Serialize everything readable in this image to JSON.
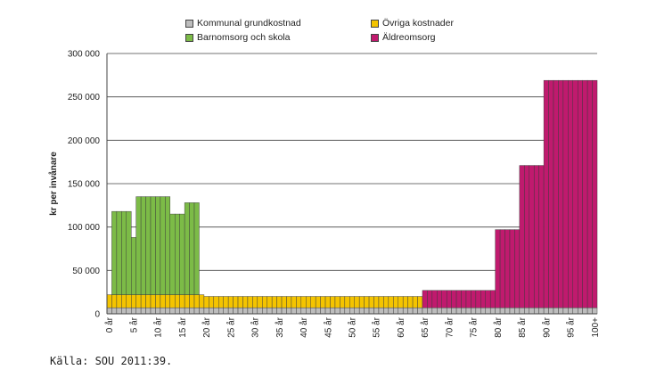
{
  "chart_data": {
    "type": "bar",
    "stacked": true,
    "ylabel": "kr per invånare",
    "ylim": [
      0,
      300000
    ],
    "yticks": [
      "0",
      "50 000",
      "100 000",
      "150 000",
      "200 000",
      "250 000",
      "300 000"
    ],
    "ytick_values": [
      0,
      50000,
      100000,
      150000,
      200000,
      250000,
      300000
    ],
    "grid": "horizontal",
    "legend_position": "top",
    "x_tick_labels": [
      {
        "age": 0,
        "label": "0 år"
      },
      {
        "age": 5,
        "label": "5 år"
      },
      {
        "age": 10,
        "label": "10 år"
      },
      {
        "age": 15,
        "label": "15 år"
      },
      {
        "age": 20,
        "label": "20 år"
      },
      {
        "age": 25,
        "label": "25 år"
      },
      {
        "age": 30,
        "label": "30 år"
      },
      {
        "age": 35,
        "label": "35 år"
      },
      {
        "age": 40,
        "label": "40 år"
      },
      {
        "age": 45,
        "label": "45 år"
      },
      {
        "age": 50,
        "label": "50 år"
      },
      {
        "age": 55,
        "label": "55 år"
      },
      {
        "age": 60,
        "label": "60 år"
      },
      {
        "age": 65,
        "label": "65 år"
      },
      {
        "age": 70,
        "label": "70 år"
      },
      {
        "age": 75,
        "label": "75 år"
      },
      {
        "age": 80,
        "label": "80 år"
      },
      {
        "age": 85,
        "label": "85 år"
      },
      {
        "age": 90,
        "label": "90 år"
      },
      {
        "age": 95,
        "label": "95 år"
      },
      {
        "age": 100,
        "label": "100+"
      }
    ],
    "categories": [
      "0",
      "1",
      "2",
      "3",
      "4",
      "5",
      "6",
      "7",
      "8",
      "9",
      "10",
      "11",
      "12",
      "13",
      "14",
      "15",
      "16",
      "17",
      "18",
      "19",
      "20",
      "21",
      "22",
      "23",
      "24",
      "25",
      "26",
      "27",
      "28",
      "29",
      "30",
      "31",
      "32",
      "33",
      "34",
      "35",
      "36",
      "37",
      "38",
      "39",
      "40",
      "41",
      "42",
      "43",
      "44",
      "45",
      "46",
      "47",
      "48",
      "49",
      "50",
      "51",
      "52",
      "53",
      "54",
      "55",
      "56",
      "57",
      "58",
      "59",
      "60",
      "61",
      "62",
      "63",
      "64",
      "65",
      "66",
      "67",
      "68",
      "69",
      "70",
      "71",
      "72",
      "73",
      "74",
      "75",
      "76",
      "77",
      "78",
      "79",
      "80",
      "81",
      "82",
      "83",
      "84",
      "85",
      "86",
      "87",
      "88",
      "89",
      "90",
      "91",
      "92",
      "93",
      "94",
      "95",
      "96",
      "97",
      "98",
      "99",
      "100+"
    ],
    "series": [
      {
        "name": "Kommunal grundkostnad",
        "color": "#bdbdbd",
        "values": [
          7000,
          7000,
          7000,
          7000,
          7000,
          7000,
          7000,
          7000,
          7000,
          7000,
          7000,
          7000,
          7000,
          7000,
          7000,
          7000,
          7000,
          7000,
          7000,
          7000,
          7000,
          7000,
          7000,
          7000,
          7000,
          7000,
          7000,
          7000,
          7000,
          7000,
          7000,
          7000,
          7000,
          7000,
          7000,
          7000,
          7000,
          7000,
          7000,
          7000,
          7000,
          7000,
          7000,
          7000,
          7000,
          7000,
          7000,
          7000,
          7000,
          7000,
          7000,
          7000,
          7000,
          7000,
          7000,
          7000,
          7000,
          7000,
          7000,
          7000,
          7000,
          7000,
          7000,
          7000,
          7000,
          7000,
          7000,
          7000,
          7000,
          7000,
          7000,
          7000,
          7000,
          7000,
          7000,
          7000,
          7000,
          7000,
          7000,
          7000,
          7000,
          7000,
          7000,
          7000,
          7000,
          7000,
          7000,
          7000,
          7000,
          7000,
          7000,
          7000,
          7000,
          7000,
          7000,
          7000,
          7000,
          7000,
          7000,
          7000,
          7000
        ]
      },
      {
        "name": "Övriga kostnader",
        "color": "#f4c400",
        "values": [
          15000,
          15000,
          15000,
          15000,
          15000,
          15000,
          15000,
          15000,
          15000,
          15000,
          15000,
          15000,
          15000,
          15000,
          15000,
          15000,
          15000,
          15000,
          15000,
          15000,
          13000,
          13000,
          13000,
          13000,
          13000,
          13000,
          13000,
          13000,
          13000,
          13000,
          13000,
          13000,
          13000,
          13000,
          13000,
          13000,
          13000,
          13000,
          13000,
          13000,
          13000,
          13000,
          13000,
          13000,
          13000,
          13000,
          13000,
          13000,
          13000,
          13000,
          13000,
          13000,
          13000,
          13000,
          13000,
          13000,
          13000,
          13000,
          13000,
          13000,
          13000,
          13000,
          13000,
          13000,
          13000,
          0,
          0,
          0,
          0,
          0,
          0,
          0,
          0,
          0,
          0,
          0,
          0,
          0,
          0,
          0,
          0,
          0,
          0,
          0,
          0,
          0,
          0,
          0,
          0,
          0,
          0,
          0,
          0,
          0,
          0,
          0,
          0,
          0,
          0,
          0,
          0
        ]
      },
      {
        "name": "Barnomsorg och skola",
        "color": "#7cbb47",
        "values": [
          0,
          96000,
          96000,
          96000,
          96000,
          66000,
          113000,
          113000,
          113000,
          113000,
          113000,
          113000,
          113000,
          93000,
          93000,
          93000,
          106000,
          106000,
          106000,
          0,
          0,
          0,
          0,
          0,
          0,
          0,
          0,
          0,
          0,
          0,
          0,
          0,
          0,
          0,
          0,
          0,
          0,
          0,
          0,
          0,
          0,
          0,
          0,
          0,
          0,
          0,
          0,
          0,
          0,
          0,
          0,
          0,
          0,
          0,
          0,
          0,
          0,
          0,
          0,
          0,
          0,
          0,
          0,
          0,
          0,
          0,
          0,
          0,
          0,
          0,
          0,
          0,
          0,
          0,
          0,
          0,
          0,
          0,
          0,
          0,
          0,
          0,
          0,
          0,
          0,
          0,
          0,
          0,
          0,
          0,
          0,
          0,
          0,
          0,
          0,
          0,
          0,
          0,
          0,
          0,
          0
        ]
      },
      {
        "name": "Äldreomsorg",
        "color": "#c01a6e",
        "values": [
          0,
          0,
          0,
          0,
          0,
          0,
          0,
          0,
          0,
          0,
          0,
          0,
          0,
          0,
          0,
          0,
          0,
          0,
          0,
          0,
          0,
          0,
          0,
          0,
          0,
          0,
          0,
          0,
          0,
          0,
          0,
          0,
          0,
          0,
          0,
          0,
          0,
          0,
          0,
          0,
          0,
          0,
          0,
          0,
          0,
          0,
          0,
          0,
          0,
          0,
          0,
          0,
          0,
          0,
          0,
          0,
          0,
          0,
          0,
          0,
          0,
          0,
          0,
          0,
          0,
          20000,
          20000,
          20000,
          20000,
          20000,
          20000,
          20000,
          20000,
          20000,
          20000,
          20000,
          20000,
          20000,
          20000,
          20000,
          90000,
          90000,
          90000,
          90000,
          90000,
          164000,
          164000,
          164000,
          164000,
          164000,
          262000,
          262000,
          262000,
          262000,
          262000,
          262000,
          262000,
          262000,
          262000,
          262000,
          262000
        ]
      }
    ]
  },
  "legend": [
    {
      "label": "Kommunal grundkostnad",
      "color": "#bdbdbd"
    },
    {
      "label": "Övriga kostnader",
      "color": "#f4c400"
    },
    {
      "label": "Barnomsorg och skola",
      "color": "#7cbb47"
    },
    {
      "label": "Äldreomsorg",
      "color": "#c01a6e"
    }
  ],
  "source_note": "Källa: SOU 2011:39."
}
